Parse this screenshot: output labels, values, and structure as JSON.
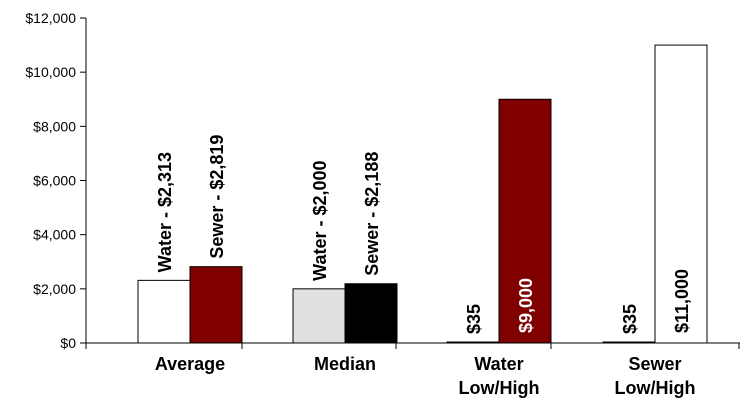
{
  "chart_data": {
    "type": "bar",
    "title": "",
    "xlabel": "",
    "ylabel": "",
    "ylim": [
      0,
      12000
    ],
    "yticks": [
      0,
      2000,
      4000,
      6000,
      8000,
      10000,
      12000
    ],
    "ytick_labels": [
      "$0",
      "$2,000",
      "$4,000",
      "$6,000",
      "$8,000",
      "$10,000",
      "$12,000"
    ],
    "grid": false,
    "legend": "none",
    "categories": [
      {
        "lines": [
          "Average"
        ]
      },
      {
        "lines": [
          "Median"
        ]
      },
      {
        "lines": [
          "Water",
          "Low/High"
        ]
      },
      {
        "lines": [
          "Sewer",
          "Low/High"
        ]
      }
    ],
    "bars": [
      {
        "value": 2313,
        "fill": "#ffffff",
        "label": "Water - $2,313",
        "label_color": "#000000",
        "label_pos": "above"
      },
      {
        "value": 2819,
        "fill": "#800000",
        "label": "Sewer - $2,819",
        "label_color": "#000000",
        "label_pos": "above"
      },
      {
        "value": 2000,
        "fill": "#e0e0e0",
        "label": "Water - $2,000",
        "label_color": "#000000",
        "label_pos": "above"
      },
      {
        "value": 2188,
        "fill": "#000000",
        "label": "Sewer - $2,188",
        "label_color": "#000000",
        "label_pos": "above"
      },
      {
        "value": 35,
        "fill": "#000000",
        "label": "$35",
        "label_color": "#000000",
        "label_pos": "above"
      },
      {
        "value": 9000,
        "fill": "#800000",
        "label": "$9,000",
        "label_color": "#ffffff",
        "label_pos": "inside"
      },
      {
        "value": 35,
        "fill": "#000000",
        "label": "$35",
        "label_color": "#000000",
        "label_pos": "above"
      },
      {
        "value": 11000,
        "fill": "#ffffff",
        "label": "$11,000",
        "label_color": "#000000",
        "label_pos": "inside"
      }
    ]
  }
}
